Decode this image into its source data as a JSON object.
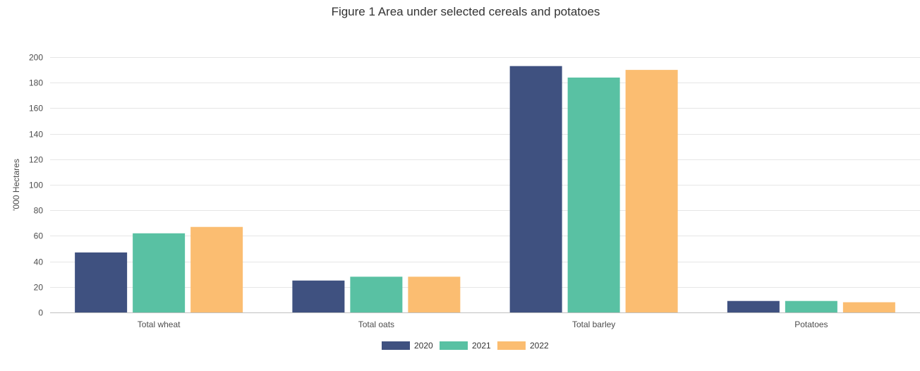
{
  "chart_data": {
    "type": "bar",
    "title": "Figure 1 Area under selected cereals and potatoes",
    "xlabel": "",
    "ylabel": "'000 Hectares",
    "ylim": [
      0,
      200
    ],
    "yticks": [
      0,
      20,
      40,
      60,
      80,
      100,
      120,
      140,
      160,
      180,
      200
    ],
    "grid": true,
    "legend_position": "bottom",
    "categories": [
      "Total wheat",
      "Total oats",
      "Total barley",
      "Potatoes"
    ],
    "series": [
      {
        "name": "2020",
        "color": "#3f5180",
        "values": [
          47,
          25,
          193,
          9
        ]
      },
      {
        "name": "2021",
        "color": "#59c1a3",
        "values": [
          62,
          28,
          184,
          9
        ]
      },
      {
        "name": "2022",
        "color": "#fbbd71",
        "values": [
          67,
          28,
          190,
          8
        ]
      }
    ]
  }
}
